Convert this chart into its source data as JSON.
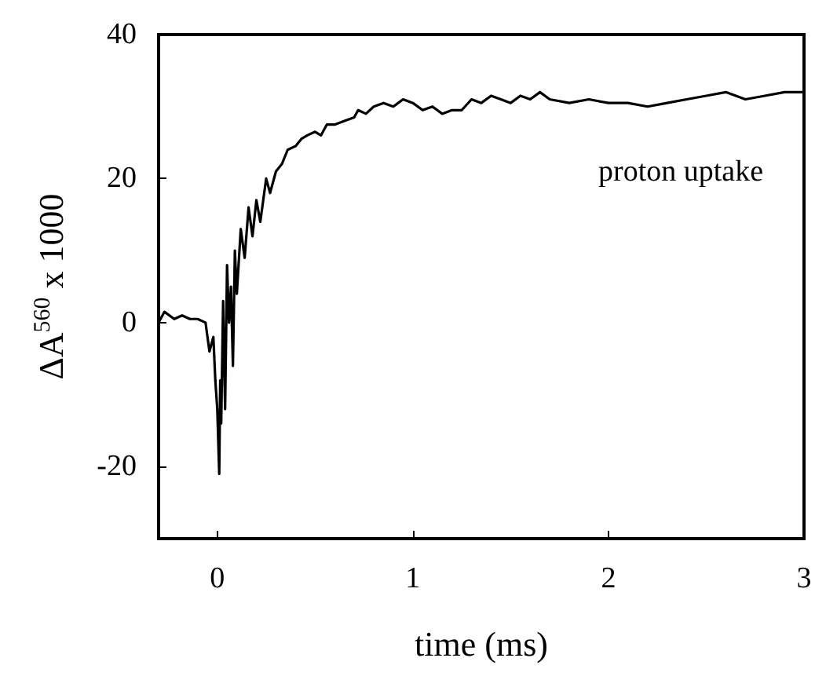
{
  "chart_data": {
    "type": "line",
    "xlabel": "time (ms)",
    "ylabel": "ΔA$^{560}$ x 1000",
    "annotations": [
      "proton uptake"
    ],
    "xlim": [
      -0.3,
      3
    ],
    "xticks": [
      0,
      1,
      2,
      3
    ],
    "ylim": [
      -30,
      40
    ],
    "yticks": [
      -20,
      0,
      20,
      40
    ],
    "grid": false,
    "marker": "none",
    "line_style": "solid",
    "series": [
      {
        "color": "#000000",
        "x": [
          -0.3,
          -0.27,
          -0.22,
          -0.18,
          -0.14,
          -0.1,
          -0.06,
          -0.04,
          -0.02,
          -0.01,
          0.0,
          0.01,
          0.015,
          0.02,
          0.03,
          0.04,
          0.05,
          0.06,
          0.07,
          0.08,
          0.09,
          0.1,
          0.12,
          0.14,
          0.16,
          0.18,
          0.2,
          0.22,
          0.25,
          0.27,
          0.3,
          0.33,
          0.36,
          0.4,
          0.43,
          0.46,
          0.5,
          0.53,
          0.56,
          0.6,
          0.65,
          0.7,
          0.72,
          0.76,
          0.8,
          0.85,
          0.9,
          0.95,
          1.0,
          1.05,
          1.1,
          1.15,
          1.2,
          1.25,
          1.3,
          1.35,
          1.4,
          1.45,
          1.5,
          1.55,
          1.6,
          1.65,
          1.7,
          1.8,
          1.9,
          2.0,
          2.1,
          2.2,
          2.3,
          2.4,
          2.5,
          2.6,
          2.7,
          2.8,
          2.9,
          3.0
        ],
        "values": [
          0,
          1.5,
          0.5,
          1,
          0.5,
          0.5,
          0,
          -4,
          -2,
          -8,
          -12,
          -21,
          -8,
          -14,
          3,
          -12,
          8,
          0,
          5,
          -6,
          10,
          4,
          13,
          9,
          16,
          12,
          17,
          14,
          20,
          18,
          21,
          22,
          24,
          24.5,
          25.5,
          26,
          26.5,
          26,
          27.5,
          27.5,
          28,
          28.5,
          29.5,
          29,
          30,
          30.5,
          30,
          31,
          30.5,
          29.5,
          30,
          29,
          29.5,
          29.5,
          31,
          30.5,
          31.5,
          31,
          30.5,
          31.5,
          31,
          32,
          31,
          30.5,
          31,
          30.5,
          30.5,
          30,
          30.5,
          31,
          31.5,
          32,
          31,
          31.5,
          32,
          32
        ]
      }
    ]
  }
}
